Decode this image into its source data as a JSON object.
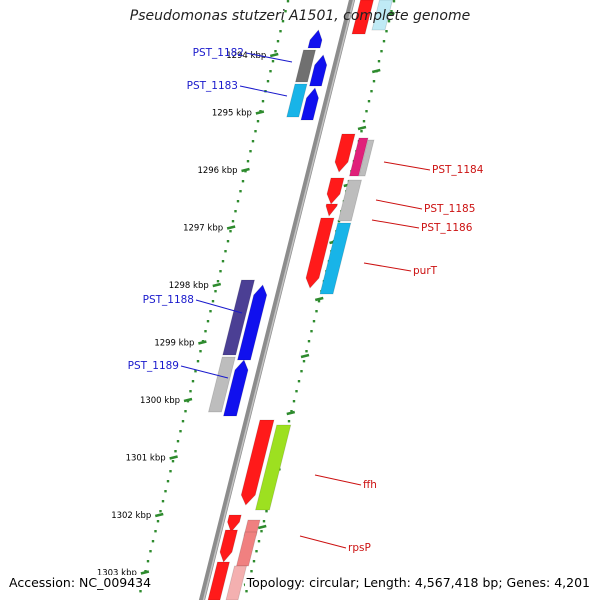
{
  "title": "Pseudomonas stutzeri A1501, complete genome",
  "footer": {
    "accession_label": "Accession:",
    "accession": "NC_009434",
    "topology_text": "Topology: circular; Length: 4,567,418 bp; Genes: 4,201"
  },
  "colors": {
    "backbone": "#8c8c8c",
    "backbone_dark": "#5a5a5a",
    "ruler_dots": "#2e8b2e",
    "forward_label": "#1a1acc",
    "reverse_label": "#cc1111"
  },
  "ruler": {
    "unit": "kbp",
    "ticks": [
      "1294 kbp",
      "1295 kbp",
      "1296 kbp",
      "1297 kbp",
      "1298 kbp",
      "1299 kbp",
      "1300 kbp",
      "1301 kbp",
      "1302 kbp",
      "1303 kbp"
    ]
  },
  "forward_genes": [
    {
      "label": "PST_1182",
      "color": "#707070"
    },
    {
      "label": "PST_1183",
      "color": "#18b4e8"
    },
    {
      "label": "PST_1188",
      "color": "#4b3f94"
    },
    {
      "label": "PST_1189",
      "color": "#bdbdbd"
    }
  ],
  "reverse_genes": [
    {
      "label": "PST_1184",
      "color": "#e0207a"
    },
    {
      "label": "PST_1185",
      "color": "#bdbdbd"
    },
    {
      "label": "PST_1186",
      "color": "#18b4e8"
    },
    {
      "label": "purT",
      "color": "#18b4e8"
    },
    {
      "label": "ffh",
      "color": "#9de020"
    },
    {
      "label": "rpsP",
      "color": "#f08080"
    }
  ]
}
